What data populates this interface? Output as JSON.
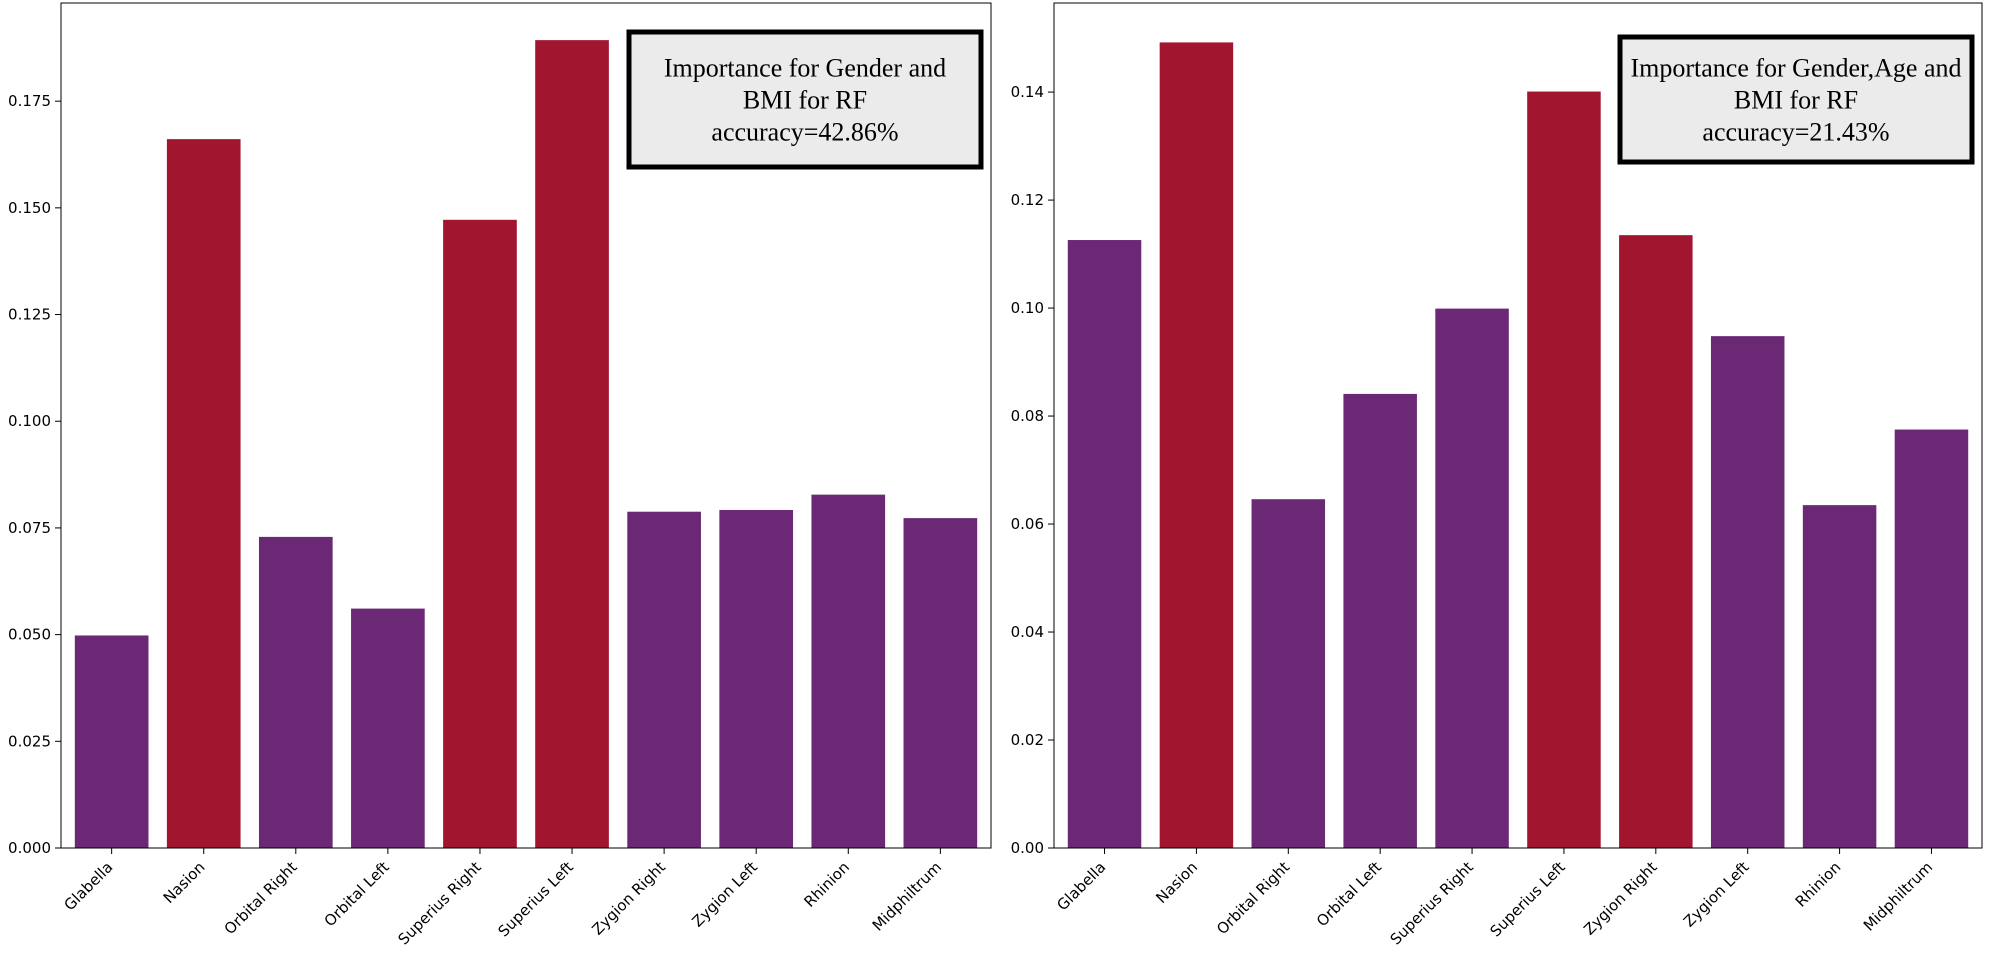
{
  "chart_data": [
    {
      "type": "bar",
      "categories": [
        "Glabella",
        "Nasion",
        "Orbital Right",
        "Orbital Left",
        "Superius Right",
        "Superius Left",
        "Zygion Right",
        "Zygion Left",
        "Rhinion",
        "Midphiltrum"
      ],
      "values": [
        0.0498,
        0.1661,
        0.0729,
        0.0561,
        0.1472,
        0.1893,
        0.0788,
        0.0792,
        0.0828,
        0.0773
      ],
      "highlighted": [
        false,
        true,
        false,
        false,
        true,
        true,
        false,
        false,
        false,
        false
      ],
      "ylim": [
        0,
        0.198
      ],
      "yticks": [
        "0.000",
        "0.025",
        "0.050",
        "0.075",
        "0.100",
        "0.125",
        "0.150",
        "0.175"
      ],
      "annotation": [
        "Importance for Gender and",
        "BMI for RF",
        "accuracy=42.86%"
      ],
      "annotation_position": "top-right",
      "grid": false
    },
    {
      "type": "bar",
      "categories": [
        "Glabella",
        "Nasion",
        "Orbital Right",
        "Orbital Left",
        "Superius Right",
        "Superius Left",
        "Zygion Right",
        "Zygion Left",
        "Rhinion",
        "Midphiltrum"
      ],
      "values": [
        0.1126,
        0.1492,
        0.0646,
        0.0841,
        0.0999,
        0.1401,
        0.1135,
        0.0948,
        0.0635,
        0.0775
      ],
      "highlighted": [
        false,
        true,
        false,
        false,
        false,
        true,
        true,
        false,
        false,
        false
      ],
      "ylim": [
        0,
        0.1565
      ],
      "yticks": [
        "0.00",
        "0.02",
        "0.04",
        "0.06",
        "0.08",
        "0.10",
        "0.12",
        "0.14"
      ],
      "annotation": [
        "Importance for Gender,Age and",
        "BMI for RF",
        "accuracy=21.43%"
      ],
      "annotation_position": "top-right",
      "grid": false
    }
  ],
  "colors": {
    "normal": "#6a2875",
    "highlight": "#a2152f",
    "annotation_bg": "#ebebeb"
  }
}
